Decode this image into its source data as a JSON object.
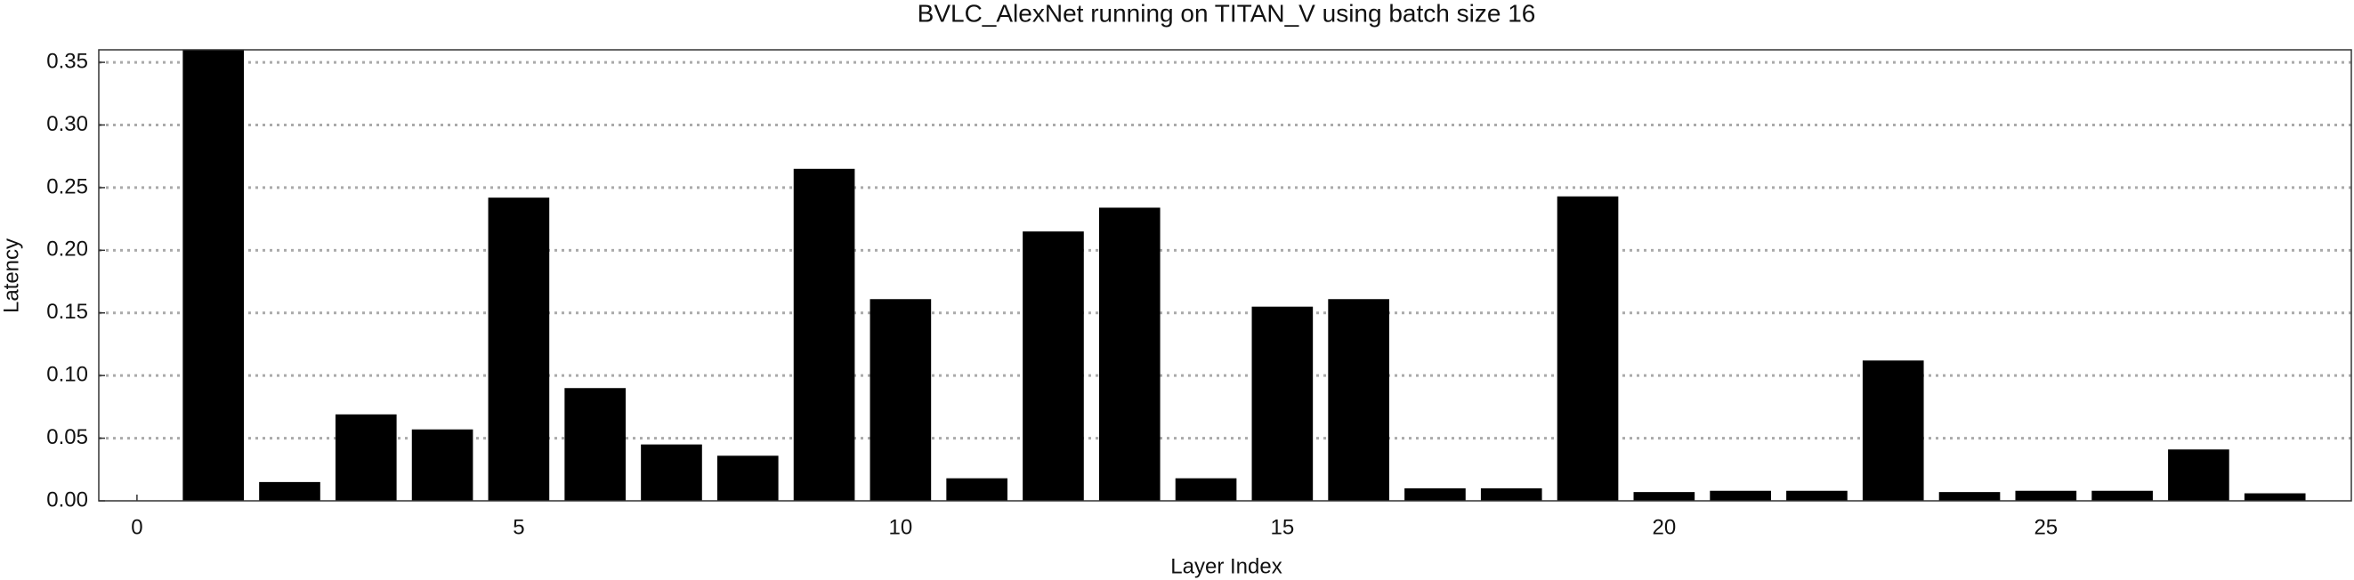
{
  "chart_data": {
    "type": "bar",
    "title": "BVLC_AlexNet running on TITAN_V using batch size 16",
    "xlabel": "Layer Index",
    "ylabel": "Latency",
    "x": [
      1,
      2,
      3,
      4,
      5,
      6,
      7,
      8,
      9,
      10,
      11,
      12,
      13,
      14,
      15,
      16,
      17,
      18,
      19,
      20,
      21,
      22,
      23,
      24,
      25,
      26,
      27,
      28
    ],
    "values": [
      0.36,
      0.015,
      0.069,
      0.057,
      0.242,
      0.09,
      0.045,
      0.036,
      0.265,
      0.161,
      0.018,
      0.215,
      0.234,
      0.018,
      0.155,
      0.161,
      0.01,
      0.01,
      0.243,
      0.007,
      0.008,
      0.008,
      0.112,
      0.007,
      0.008,
      0.008,
      0.041,
      0.006
    ],
    "color": "#000000",
    "xlim": [
      -0.5,
      29
    ],
    "xticks": [
      0,
      5,
      10,
      15,
      20,
      25
    ],
    "ylim": [
      0,
      0.36
    ],
    "yticks": [
      {
        "value": 0,
        "label": "0.00"
      },
      {
        "value": 0.05,
        "label": "0.05"
      },
      {
        "value": 0.1,
        "label": "0.10"
      },
      {
        "value": 0.15,
        "label": "0.15"
      },
      {
        "value": 0.2,
        "label": "0.20"
      },
      {
        "value": 0.25,
        "label": "0.25"
      },
      {
        "value": 0.3,
        "label": "0.30"
      },
      {
        "value": 0.35,
        "label": "0.35"
      }
    ],
    "grid": true
  }
}
